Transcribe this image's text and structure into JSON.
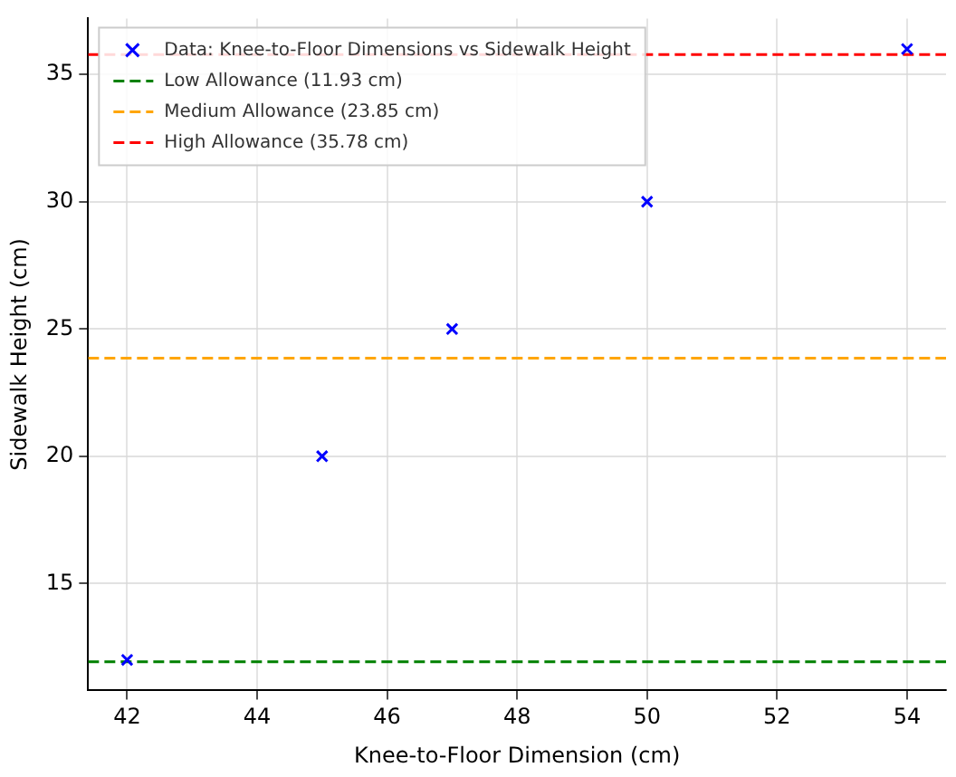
{
  "chart_data": {
    "type": "scatter",
    "xlabel": "Knee-to-Floor Dimension (cm)",
    "ylabel": "Sidewalk Height (cm)",
    "x": [
      42,
      45,
      47,
      50,
      54
    ],
    "series": [
      {
        "name": "Data: Knee-to-Floor Dimensions vs Sidewalk Height",
        "color": "#0000ff",
        "values": [
          12,
          20,
          25,
          30,
          36
        ]
      }
    ],
    "ref_lines": [
      {
        "axis": "y",
        "value": 11.93,
        "label": "Low Allowance (11.93 cm)",
        "color": "#008000",
        "line_style": "dashed"
      },
      {
        "axis": "y",
        "value": 23.85,
        "label": "Medium Allowance (23.85 cm)",
        "color": "#ffa500",
        "line_style": "dashed"
      },
      {
        "axis": "y",
        "value": 35.78,
        "label": "High Allowance (35.78 cm)",
        "color": "#ff0000",
        "line_style": "dashed"
      }
    ],
    "xlim": [
      41.4,
      54.6
    ],
    "ylim": [
      10.8,
      37.2
    ],
    "xticks": [
      42,
      44,
      46,
      48,
      50,
      52,
      54
    ],
    "yticks": [
      15,
      20,
      25,
      30,
      35
    ],
    "grid": true,
    "legend": "top left",
    "marker": "cross"
  }
}
